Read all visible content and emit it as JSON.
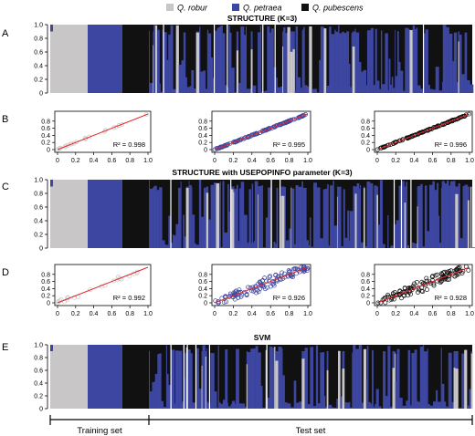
{
  "legend": [
    {
      "label": "Q. robur",
      "color": "#c8c6c7"
    },
    {
      "label": "Q. petraea",
      "color": "#3d46a0"
    },
    {
      "label": "Q. pubescens",
      "color": "#111111"
    }
  ],
  "colors": {
    "robur": "#c8c6c7",
    "petraea": "#3d46a0",
    "pubescens": "#111111",
    "fit_line": "#e0262a"
  },
  "panels": {
    "A": {
      "letter": "A",
      "title": "STRUCTURE (K=3)"
    },
    "B": {
      "letter": "B"
    },
    "C": {
      "letter": "C",
      "title": "STRUCTURE with USEPOPINFO parameter (K=3)"
    },
    "D": {
      "letter": "D"
    },
    "E": {
      "letter": "E",
      "title": "SVM"
    }
  },
  "bottom": {
    "training_label": "Training set",
    "test_label": "Test set"
  },
  "chart_data": [
    {
      "panel": "A",
      "type": "area",
      "title": "STRUCTURE (K=3)",
      "ylim": [
        0,
        1.0
      ],
      "yticks": [
        "0",
        "0.2",
        "0.4",
        "0.6",
        "0.8",
        "1.0"
      ],
      "training_segments": [
        "Q. robur",
        "Q. petraea",
        "Q. pubescens"
      ]
    },
    {
      "panel": "B",
      "type": "scatter",
      "series": [
        {
          "name": "Q. robur",
          "r2_text": "R² = 0.998",
          "xlim": [
            0,
            1
          ],
          "ylim": [
            0,
            1
          ],
          "xticks": [
            "0",
            "0.2",
            "0.4",
            "0.6",
            "0.8",
            "1.0"
          ],
          "yticks": [
            "0",
            "0.2",
            "0.4",
            "0.6",
            "0.8"
          ]
        },
        {
          "name": "Q. petraea",
          "r2_text": "R² = 0.995",
          "xlim": [
            0,
            1
          ],
          "ylim": [
            0,
            1
          ],
          "xticks": [
            "0",
            "0.2",
            "0.4",
            "0.6",
            "0.8",
            "1.0"
          ],
          "yticks": [
            "0",
            "0.2",
            "0.4",
            "0.6",
            "0.8"
          ]
        },
        {
          "name": "Q. pubescens",
          "r2_text": "R² = 0.996",
          "xlim": [
            0,
            1
          ],
          "ylim": [
            0,
            1
          ],
          "xticks": [
            "0",
            "0.2",
            "0.4",
            "0.6",
            "0.8",
            "1.0"
          ],
          "yticks": [
            "0",
            "0.2",
            "0.4",
            "0.6",
            "0.8"
          ]
        }
      ]
    },
    {
      "panel": "C",
      "type": "area",
      "title": "STRUCTURE with USEPOPINFO parameter (K=3)",
      "ylim": [
        0,
        1.0
      ],
      "yticks": [
        "0",
        "0.2",
        "0.4",
        "0.6",
        "0.8",
        "1.0"
      ]
    },
    {
      "panel": "D",
      "type": "scatter",
      "series": [
        {
          "name": "Q. robur",
          "r2_text": "R² = 0.992",
          "xlim": [
            0,
            1
          ],
          "ylim": [
            0,
            1
          ],
          "xticks": [
            "0",
            "0.2",
            "0.4",
            "0.6",
            "0.8",
            "1.0"
          ],
          "yticks": [
            "0",
            "0.2",
            "0.4",
            "0.6",
            "0.8"
          ]
        },
        {
          "name": "Q. petraea",
          "r2_text": "R² = 0.926",
          "xlim": [
            0,
            1
          ],
          "ylim": [
            0,
            1
          ],
          "xticks": [
            "0",
            "0.2",
            "0.4",
            "0.6",
            "0.8",
            "1.0"
          ],
          "yticks": [
            "0",
            "0.2",
            "0.4",
            "0.6",
            "0.8"
          ]
        },
        {
          "name": "Q. pubescens",
          "r2_text": "R² = 0.928",
          "xlim": [
            0,
            1
          ],
          "ylim": [
            0,
            1
          ],
          "xticks": [
            "0",
            "0.2",
            "0.4",
            "0.6",
            "0.8",
            "1.0"
          ],
          "yticks": [
            "0",
            "0.2",
            "0.4",
            "0.6",
            "0.8"
          ]
        }
      ]
    },
    {
      "panel": "E",
      "type": "area",
      "title": "SVM",
      "ylim": [
        0,
        1.0
      ],
      "yticks": [
        "0",
        "0.2",
        "0.4",
        "0.6",
        "0.8",
        "1.0"
      ]
    }
  ]
}
